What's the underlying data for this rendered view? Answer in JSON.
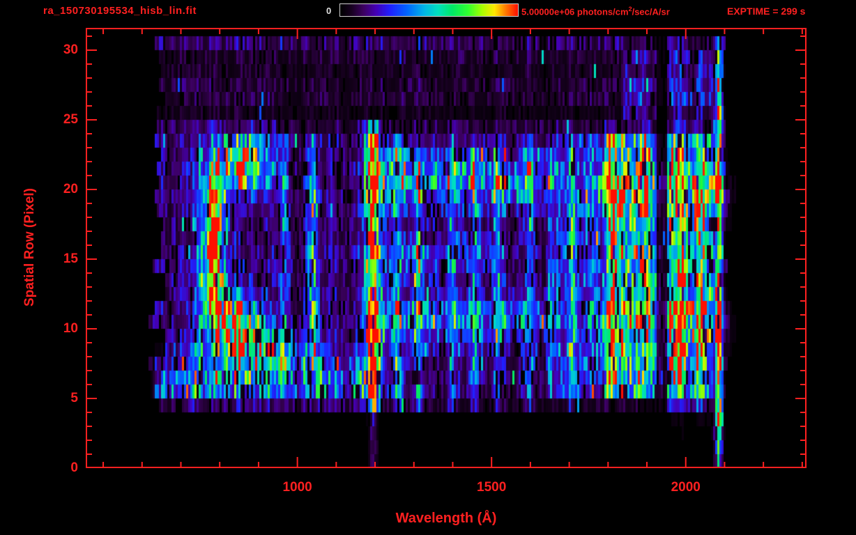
{
  "header": {
    "filename": "ra_150730195534_hisb_lin.fit",
    "colorbar": {
      "min_label": "0",
      "max_label_pre": "5.00000e+06 photons/cm",
      "max_label_sup": "2",
      "max_label_post": "/sec/A/sr"
    },
    "exptime": "EXPTIME = 299 s"
  },
  "colors": {
    "axis": "#ff2020",
    "text_red": "#ff2020",
    "text_white": "#e0e0e0",
    "background": "#000000"
  },
  "chart_data": {
    "type": "heatmap",
    "title": "ra_150730195534_hisb_lin.fit",
    "xlabel": "Wavelength (Å)",
    "ylabel": "Spatial Row (Pixel)",
    "xlim": [
      455,
      2311
    ],
    "ylim": [
      0,
      31.6
    ],
    "xticks": [
      1000,
      1500,
      2000
    ],
    "yticks": [
      0,
      5,
      10,
      15,
      20,
      25,
      30
    ],
    "xtick_minor_step": 100,
    "ytick_minor_step": 1,
    "intensity_min": 0,
    "intensity_max": 5000000,
    "intensity_units": "photons/cm2/sec/A/sr",
    "exposure_seconds": 299,
    "colormap": "rainbow",
    "colormap_stops": [
      [
        0.0,
        "#000000"
      ],
      [
        0.06,
        "#16001e"
      ],
      [
        0.13,
        "#3c0060"
      ],
      [
        0.2,
        "#4400b4"
      ],
      [
        0.28,
        "#2020ff"
      ],
      [
        0.38,
        "#0068ff"
      ],
      [
        0.47,
        "#00b4e8"
      ],
      [
        0.55,
        "#00e0c0"
      ],
      [
        0.63,
        "#00e868"
      ],
      [
        0.72,
        "#30ff30"
      ],
      [
        0.8,
        "#a8ff00"
      ],
      [
        0.87,
        "#ffe800"
      ],
      [
        0.93,
        "#ff8000"
      ],
      [
        1.0,
        "#ff1000"
      ]
    ],
    "data_extent": {
      "wavelength": [
        640,
        2100
      ],
      "rows": [
        0,
        30.5
      ]
    },
    "features": {
      "noise": {
        "xrange": [
          640,
          2100
        ],
        "rows": [
          4,
          31
        ],
        "amp": 0.16,
        "edge_jitter": 22
      },
      "columns": [
        {
          "x": 1195,
          "sigma": 9,
          "rows": [
            5,
            24
          ],
          "amp": 1.15,
          "name": "lyman-alpha-core"
        },
        {
          "x": 1195,
          "sigma": 22,
          "rows": [
            5,
            24
          ],
          "amp": 0.22,
          "name": "lyman-alpha-glow"
        },
        {
          "x": 1195,
          "sigma": 7,
          "rows": [
            0,
            5
          ],
          "amp": 0.18,
          "name": "lyman-alpha-faint-low"
        },
        {
          "x": 1040,
          "sigma": 8,
          "rows": [
            8,
            23
          ],
          "amp": 0.5
        },
        {
          "x": 965,
          "sigma": 9,
          "rows": [
            6,
            23
          ],
          "amp": 0.3
        },
        {
          "x": 1255,
          "sigma": 8,
          "rows": [
            5,
            23
          ],
          "amp": 0.45
        },
        {
          "x": 1311,
          "sigma": 8,
          "rows": [
            5,
            23
          ],
          "amp": 0.38
        },
        {
          "x": 1397,
          "sigma": 8,
          "rows": [
            5,
            23
          ],
          "amp": 0.3
        },
        {
          "x": 1455,
          "sigma": 8,
          "rows": [
            5,
            23
          ],
          "amp": 0.3
        },
        {
          "x": 1514,
          "sigma": 8,
          "rows": [
            5,
            23
          ],
          "amp": 0.26
        },
        {
          "x": 1598,
          "sigma": 8,
          "rows": [
            5,
            23
          ],
          "amp": 0.28
        },
        {
          "x": 1706,
          "sigma": 8,
          "rows": [
            5,
            23
          ],
          "amp": 0.28
        },
        {
          "x": 1810,
          "sigma": 10,
          "rows": [
            6,
            24
          ],
          "amp": 0.3
        },
        {
          "x": 1900,
          "sigma": 10,
          "rows": [
            6,
            24
          ],
          "amp": 0.28
        },
        {
          "x": 1985,
          "sigma": 10,
          "rows": [
            5,
            24
          ],
          "amp": 0.32
        },
        {
          "x": 2030,
          "sigma": 9,
          "rows": [
            5,
            24
          ],
          "amp": 0.3
        },
        {
          "x": 2085,
          "sigma": 6,
          "rows": [
            1,
            30
          ],
          "amp": 0.85,
          "name": "detector-edge-line"
        }
      ],
      "blobs": [
        {
          "x": 855,
          "y": 22,
          "sx": 50,
          "sy": 1.3,
          "amp": 0.7
        },
        {
          "x": 785,
          "y": 18.5,
          "sx": 22,
          "sy": 2.2,
          "amp": 0.65
        },
        {
          "x": 780,
          "y": 15,
          "sx": 20,
          "sy": 2.2,
          "amp": 0.6
        },
        {
          "x": 790,
          "y": 12.3,
          "sx": 22,
          "sy": 1.8,
          "amp": 0.6
        },
        {
          "x": 845,
          "y": 10.3,
          "sx": 45,
          "sy": 1.4,
          "amp": 0.7
        },
        {
          "x": 905,
          "y": 8.3,
          "sx": 75,
          "sy": 1.0,
          "amp": 0.5
        }
      ],
      "bands": [
        {
          "y": 20.7,
          "sy": 1.4,
          "xrange": [
            1230,
            1620
          ],
          "amp": 0.32
        },
        {
          "y": 10.6,
          "sy": 1.2,
          "xrange": [
            1230,
            1620
          ],
          "amp": 0.28
        },
        {
          "y": 15.2,
          "sy": 0.9,
          "xrange": [
            1250,
            1500
          ],
          "amp": 0.18
        },
        {
          "y": 6.2,
          "sy": 1.3,
          "xrange": [
            680,
            1180
          ],
          "amp": 0.3
        },
        {
          "y": 19.5,
          "sy": 1.6,
          "xrange": [
            1795,
            2070
          ],
          "amp": 0.25
        },
        {
          "y": 10.5,
          "sy": 1.6,
          "xrange": [
            1795,
            2070
          ],
          "amp": 0.2
        }
      ],
      "regions": [
        {
          "xrange": [
            1795,
            2070
          ],
          "rows": [
            5,
            24
          ],
          "amp": 0.42
        },
        {
          "xrange": [
            1640,
            1795
          ],
          "rows": [
            5,
            24
          ],
          "amp": 0.15
        },
        {
          "xrange": [
            1840,
            2070
          ],
          "rows": [
            25,
            30
          ],
          "amp": 0.28
        },
        {
          "xrange": [
            1930,
            2070
          ],
          "rows": [
            2,
            5
          ],
          "amp": 0.25
        }
      ],
      "row_gains": [
        0,
        0.06,
        0.06,
        0.12,
        0.5,
        0.95,
        1.0,
        0.95,
        1.05,
        1.0,
        1.05,
        1.05,
        0.95,
        1.0,
        1.0,
        1.0,
        0.95,
        0.95,
        1.0,
        1.05,
        1.1,
        1.05,
        1.0,
        0.95,
        0.75,
        0.35,
        0.6,
        0.6,
        0.45,
        0.55,
        0.9
      ]
    }
  }
}
